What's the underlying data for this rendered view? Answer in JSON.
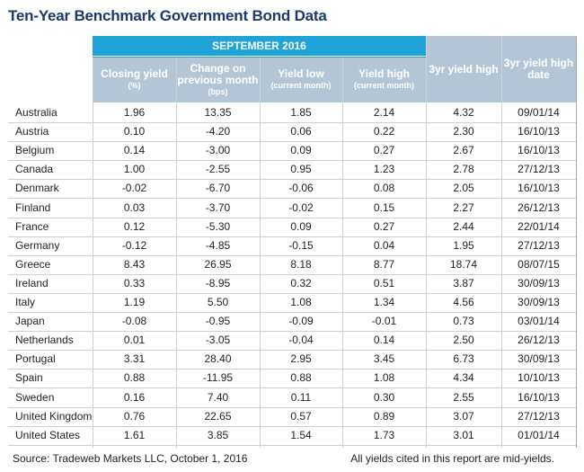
{
  "title": "Ten-Year Benchmark Government Bond Data",
  "group_header": "SEPTEMBER 2016",
  "columns": [
    {
      "main": "Closing yield",
      "sub": "(%)"
    },
    {
      "main": "Change on previous month",
      "sub": "(bps)"
    },
    {
      "main": "Yield low",
      "sub": "(current month)"
    },
    {
      "main": "Yield high",
      "sub": "(current month)"
    },
    {
      "main": "3yr yield high",
      "sub": ""
    },
    {
      "main": "3yr yield high date",
      "sub": ""
    }
  ],
  "rows": [
    {
      "country": "Australia",
      "closing": "1.96",
      "change": "13.35",
      "low": "1.85",
      "high": "2.14",
      "yr3high": "4.32",
      "yr3date": "09/01/14"
    },
    {
      "country": "Austria",
      "closing": "0.10",
      "change": "-4.20",
      "low": "0.06",
      "high": "0.22",
      "yr3high": "2.30",
      "yr3date": "16/10/13"
    },
    {
      "country": "Belgium",
      "closing": "0.14",
      "change": "-3.00",
      "low": "0.09",
      "high": "0.27",
      "yr3high": "2.67",
      "yr3date": "16/10/13"
    },
    {
      "country": "Canada",
      "closing": "1.00",
      "change": "-2.55",
      "low": "0.95",
      "high": "1.23",
      "yr3high": "2.78",
      "yr3date": "27/12/13"
    },
    {
      "country": "Denmark",
      "closing": "-0.02",
      "change": "-6.70",
      "low": "-0.06",
      "high": "0.08",
      "yr3high": "2.05",
      "yr3date": "16/10/13"
    },
    {
      "country": "Finland",
      "closing": "0.03",
      "change": "-3.70",
      "low": "-0.02",
      "high": "0.15",
      "yr3high": "2.27",
      "yr3date": "26/12/13"
    },
    {
      "country": "France",
      "closing": "0.12",
      "change": "-5.30",
      "low": "0.09",
      "high": "0.27",
      "yr3high": "2.44",
      "yr3date": "22/01/14"
    },
    {
      "country": "Germany",
      "closing": "-0.12",
      "change": "-4.85",
      "low": "-0.15",
      "high": "0.04",
      "yr3high": "1.95",
      "yr3date": "27/12/13"
    },
    {
      "country": "Greece",
      "closing": "8.43",
      "change": "26.95",
      "low": "8.18",
      "high": "8.77",
      "yr3high": "18.74",
      "yr3date": "08/07/15"
    },
    {
      "country": "Ireland",
      "closing": "0.33",
      "change": "-8.95",
      "low": "0.32",
      "high": "0.51",
      "yr3high": "3.87",
      "yr3date": "30/09/13"
    },
    {
      "country": "Italy",
      "closing": "1.19",
      "change": "5.50",
      "low": "1.08",
      "high": "1.34",
      "yr3high": "4.56",
      "yr3date": "30/09/13"
    },
    {
      "country": "Japan",
      "closing": "-0.08",
      "change": "-0.95",
      "low": "-0.09",
      "high": "-0.01",
      "yr3high": "0.73",
      "yr3date": "03/01/14"
    },
    {
      "country": "Netherlands",
      "closing": "0.01",
      "change": "-3.05",
      "low": "-0.04",
      "high": "0.14",
      "yr3high": "2.50",
      "yr3date": "26/12/13"
    },
    {
      "country": "Portugal",
      "closing": "3.31",
      "change": "28.40",
      "low": "2.95",
      "high": "3.45",
      "yr3high": "6.73",
      "yr3date": "30/09/13"
    },
    {
      "country": "Spain",
      "closing": "0.88",
      "change": "-11.95",
      "low": "0.88",
      "high": "1.08",
      "yr3high": "4.34",
      "yr3date": "10/10/13"
    },
    {
      "country": "Sweden",
      "closing": "0.16",
      "change": "7.40",
      "low": "0.11",
      "high": "0.30",
      "yr3high": "2.55",
      "yr3date": "16/10/13"
    },
    {
      "country": "United Kingdom",
      "closing": "0.76",
      "change": "22.65",
      "low": "0.57",
      "high": "0.89",
      "yr3high": "3.07",
      "yr3date": "27/12/13"
    },
    {
      "country": "United States",
      "closing": "1.61",
      "change": "3.85",
      "low": "1.54",
      "high": "1.73",
      "yr3high": "3.01",
      "yr3date": "01/01/14"
    }
  ],
  "footer_source": "Source: Tradeweb Markets LLC, October 1, 2016",
  "footer_note": "All yields cited in this report are mid-yields.",
  "colors": {
    "title": "#1a3a6e",
    "group_header_bg": "#1fa3d9",
    "column_header_bg": "#b4c6d5"
  }
}
